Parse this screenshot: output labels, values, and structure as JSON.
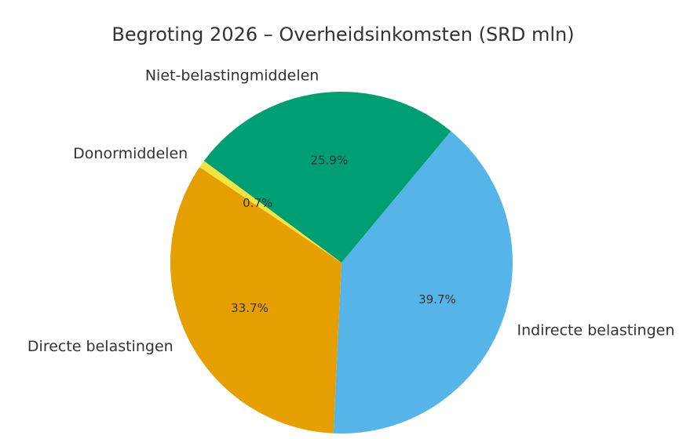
{
  "chart_data": {
    "type": "pie",
    "title": "Begroting 2026 – Overheidsinkomsten (SRD mln)",
    "categories": [
      "Directe belastingen",
      "Indirecte belastingen",
      "Niet-belastingmiddelen",
      "Donormiddelen"
    ],
    "values": [
      33.7,
      39.7,
      25.9,
      0.7
    ],
    "value_labels": [
      "33.7%",
      "39.7%",
      "25.9%",
      "0.7%"
    ],
    "colors": [
      "#e69f00",
      "#56b4e9",
      "#009e73",
      "#f0e442"
    ]
  }
}
